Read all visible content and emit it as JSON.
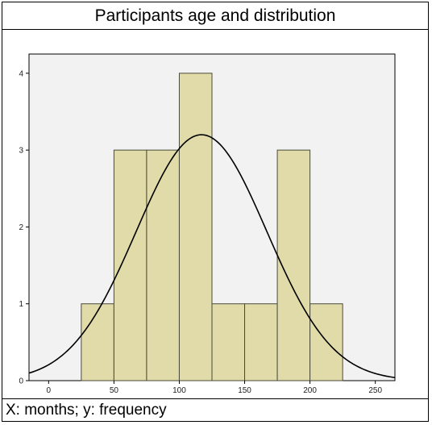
{
  "chart_data": {
    "type": "bar",
    "title": "Participants age and distribution",
    "caption": "X: months; y: frequency",
    "bin_edges": [
      25,
      50,
      75,
      100,
      125,
      150,
      175,
      200,
      225
    ],
    "frequencies": [
      1,
      3,
      3,
      4,
      1,
      1,
      3,
      1
    ],
    "normal_curve": {
      "mean": 117,
      "sd": 50,
      "peak": 3.2
    },
    "x_ticks": [
      0,
      50,
      100,
      150,
      200,
      250
    ],
    "y_ticks": [
      0,
      1,
      2,
      3,
      4
    ],
    "xlim": [
      -15,
      265
    ],
    "ylim": [
      0,
      4.25
    ],
    "grid": false,
    "colors": {
      "bar_fill": "#e0dba9",
      "bar_stroke": "#4a4a3a",
      "plot_background": "#f2f2f2",
      "curve": "#000000"
    }
  }
}
